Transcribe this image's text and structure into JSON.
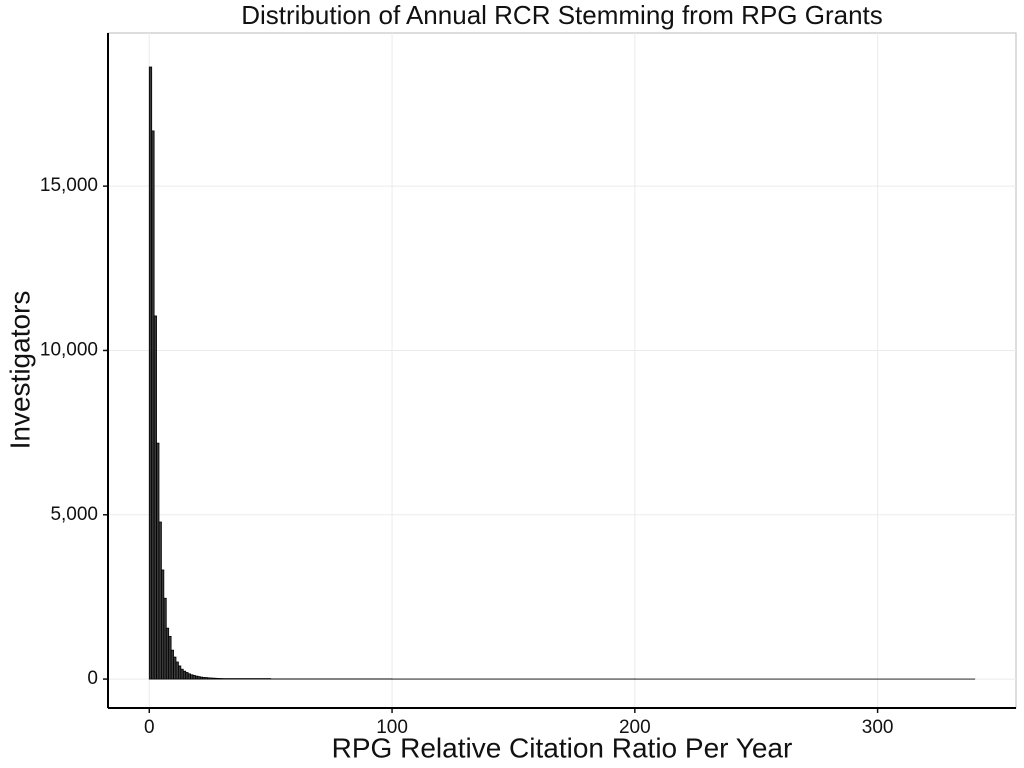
{
  "chart_data": {
    "type": "histogram",
    "title": "Distribution of Annual RCR Stemming from RPG Grants",
    "x_label": "RPG Relative Citation Ratio Per Year",
    "y_label": "Investigators",
    "bins": [
      0,
      1,
      2,
      3,
      4,
      5,
      6,
      7,
      8,
      9,
      10,
      11,
      12,
      13,
      14,
      15,
      16,
      17,
      18,
      19,
      20,
      21,
      22,
      23,
      24,
      25,
      26,
      27,
      28,
      29,
      30,
      50,
      100,
      200,
      340
    ],
    "counts": [
      18625,
      16680,
      11050,
      7180,
      4780,
      3320,
      2460,
      1550,
      1300,
      880,
      670,
      520,
      400,
      300,
      240,
      200,
      160,
      130,
      110,
      90,
      75,
      60,
      50,
      45,
      38,
      32,
      28,
      24,
      20,
      17,
      15,
      5,
      2,
      1
    ],
    "color": "#3a3a3a",
    "xlim": [
      -17,
      357
    ],
    "xticks": [
      0,
      100,
      200,
      300
    ],
    "ylim": [
      -880,
      19660
    ],
    "yticks": [
      0,
      {
        "value": 5000,
        "label": "5,000"
      },
      {
        "value": 10000,
        "label": "10,000"
      },
      {
        "value": 15000,
        "label": "15,000"
      }
    ],
    "grid": true
  }
}
